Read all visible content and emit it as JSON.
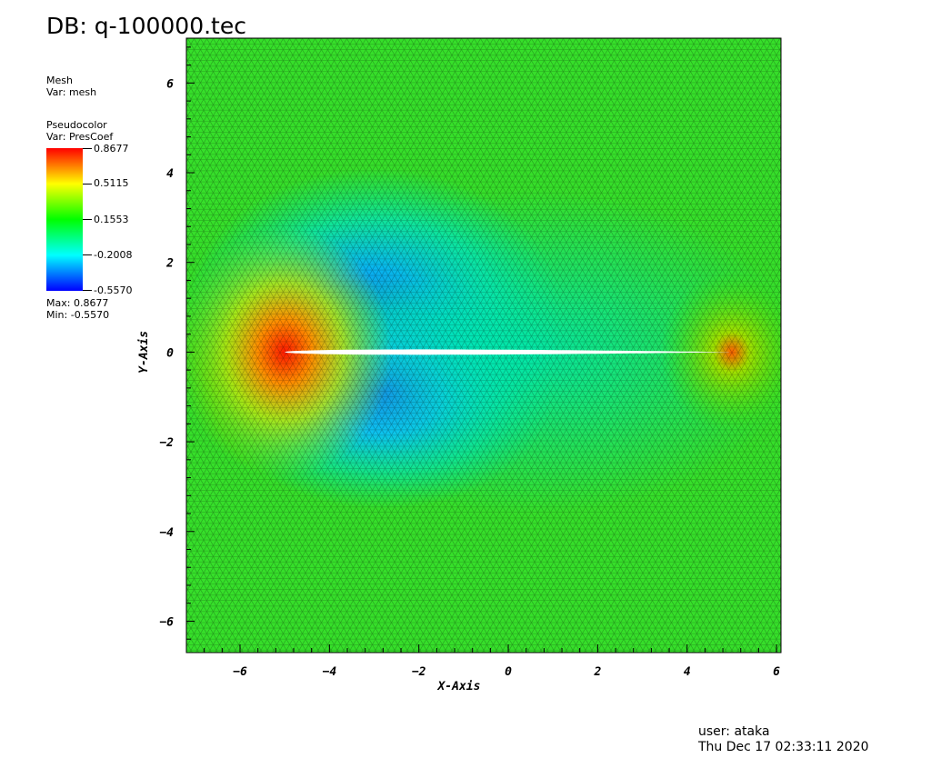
{
  "header": {
    "title": "DB: q-100000.tec"
  },
  "legend": {
    "mesh_plot": "Mesh",
    "mesh_var": "Var: mesh",
    "pc_plot": "Pseudocolor",
    "pc_var": "Var: PresCoef",
    "max_text": "Max:  0.8677",
    "min_text": "Min: -0.5570",
    "colorbar_labels": [
      "0.8677",
      "0.5115",
      "0.1553",
      "-0.2008",
      "-0.5570"
    ],
    "colorbar_colors": [
      "#ff0000",
      "#ffff00",
      "#00ff00",
      "#00ffff",
      "#0000ff"
    ]
  },
  "footer": {
    "user": "user: ataka",
    "date": "Thu Dec 17 02:33:11 2020"
  },
  "chart_data": {
    "type": "heatmap",
    "xlabel": "X-Axis",
    "ylabel": "Y-Axis",
    "xlim": [
      -7.2,
      6.1
    ],
    "ylim": [
      -6.7,
      7.0
    ],
    "xticks": [
      -6,
      -4,
      -2,
      0,
      2,
      4,
      6
    ],
    "yticks": [
      -6,
      -4,
      -2,
      0,
      2,
      4,
      6
    ],
    "grid": false,
    "variable": "PresCoef",
    "value_range": [
      -0.557,
      0.8677
    ],
    "background_value": 0.15,
    "field_features": [
      {
        "x": -5.0,
        "y": 0.0,
        "value": 0.8677
      },
      {
        "x": -3.5,
        "y": 0.6,
        "value": -0.557
      },
      {
        "x": -3.0,
        "y": -0.8,
        "value": -0.45
      },
      {
        "x": 5.0,
        "y": 0.0,
        "value": 0.3
      }
    ],
    "airfoil": {
      "leading_edge": [
        -5.0,
        0.0
      ],
      "trailing_edge": [
        5.0,
        0.0
      ],
      "max_half_thickness": 0.6
    }
  }
}
